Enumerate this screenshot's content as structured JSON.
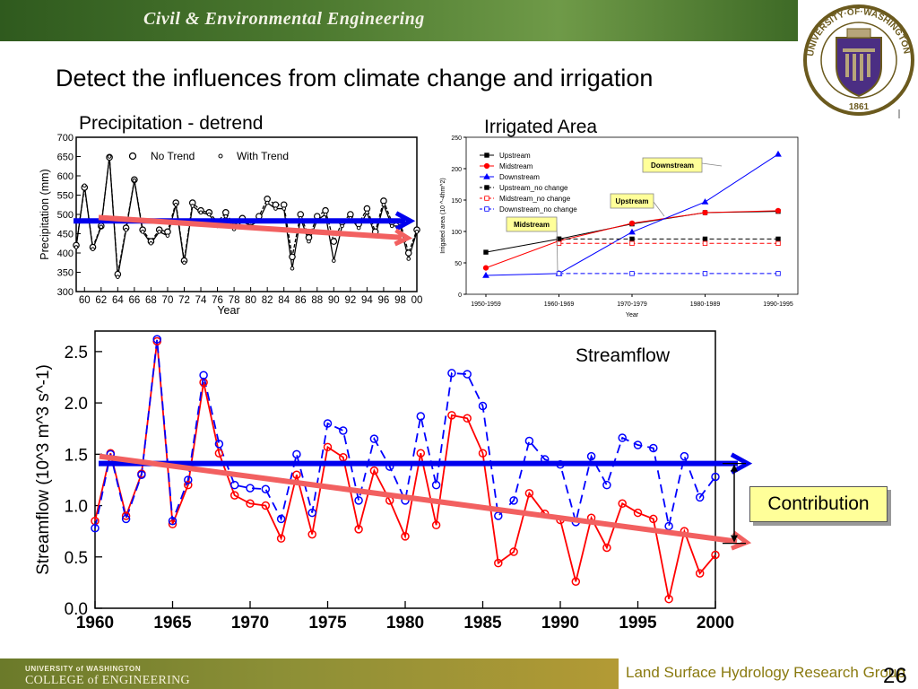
{
  "header": {
    "title": "Civil & Environmental Engineering"
  },
  "seal": {
    "text": "UNIVERSITY·OF·WASHINGTON",
    "year": "1861"
  },
  "slide": {
    "title": "Detect the influences from climate change and irrigation"
  },
  "colors": {
    "header_green": "#4d7a30",
    "footer_gold": "#b39a35",
    "red": "#ff0000",
    "blue": "#0000ff",
    "arrow_blue": "#0000ee",
    "arrow_red": "#f26060",
    "callout_yellow": "#ffff99"
  },
  "chart_data": [
    {
      "type": "line",
      "title": "Precipitation - detrend",
      "xlabel": "Year",
      "ylabel": "Precipitation (mm)",
      "ylim": [
        300,
        700
      ],
      "yticks": [
        "300",
        "350",
        "400",
        "450",
        "500",
        "550",
        "600",
        "650",
        "700"
      ],
      "xticks": [
        "60",
        "62",
        "64",
        "66",
        "68",
        "70",
        "72",
        "74",
        "76",
        "78",
        "80",
        "82",
        "84",
        "86",
        "88",
        "90",
        "92",
        "94",
        "96",
        "98",
        "00"
      ],
      "x": [
        1959,
        1960,
        1961,
        1962,
        1963,
        1964,
        1965,
        1966,
        1967,
        1968,
        1969,
        1970,
        1971,
        1972,
        1973,
        1974,
        1975,
        1976,
        1977,
        1978,
        1979,
        1980,
        1981,
        1982,
        1983,
        1984,
        1985,
        1986,
        1987,
        1988,
        1989,
        1990,
        1991,
        1992,
        1993,
        1994,
        1995,
        1996,
        1997,
        1998,
        1999,
        2000
      ],
      "legend": [
        "No Trend",
        "With Trend"
      ],
      "series": [
        {
          "name": "No Trend",
          "values": [
            420,
            570,
            415,
            470,
            648,
            345,
            465,
            590,
            460,
            430,
            460,
            455,
            530,
            380,
            530,
            510,
            505,
            480,
            505,
            470,
            490,
            480,
            495,
            540,
            525,
            525,
            390,
            500,
            440,
            495,
            510,
            430,
            480,
            500,
            475,
            515,
            455,
            535,
            480,
            480,
            400,
            460
          ]
        },
        {
          "name": "With Trend",
          "values": [
            415,
            575,
            410,
            468,
            650,
            338,
            460,
            588,
            455,
            425,
            455,
            445,
            525,
            375,
            522,
            505,
            500,
            470,
            495,
            462,
            482,
            470,
            485,
            530,
            515,
            515,
            360,
            490,
            430,
            485,
            500,
            380,
            470,
            490,
            465,
            505,
            445,
            525,
            470,
            470,
            385,
            455
          ]
        }
      ]
    },
    {
      "type": "line",
      "title": "Irrigated Area",
      "xlabel": "Year",
      "ylabel": "Irrigated area (10 ^-4hm^2)",
      "ylim": [
        0,
        250
      ],
      "yticks": [
        "0",
        "50",
        "100",
        "150",
        "200",
        "250"
      ],
      "categories": [
        "1950-1959",
        "1960-1969",
        "1970-1979",
        "1980-1989",
        "1990-1995"
      ],
      "series": [
        {
          "name": "Upstream",
          "values": [
            67,
            88,
            112,
            130,
            132
          ]
        },
        {
          "name": "Midstream",
          "values": [
            42,
            85,
            113,
            130,
            133
          ]
        },
        {
          "name": "Downstream",
          "values": [
            30,
            33,
            99,
            147,
            223
          ]
        },
        {
          "name": "Upstream_no change",
          "values": [
            null,
            88,
            88,
            88,
            88
          ]
        },
        {
          "name": "Midstream_no change",
          "values": [
            null,
            81,
            81,
            81,
            81
          ]
        },
        {
          "name": "Downstream_no change",
          "values": [
            null,
            33,
            33,
            33,
            33
          ]
        }
      ],
      "callouts": [
        "Downstream",
        "Upstream",
        "Midstream"
      ]
    },
    {
      "type": "line",
      "title": "Streamflow",
      "xlabel": "",
      "ylabel": "Streamflow (10^3 m^3 s^-1)",
      "ylim": [
        0,
        2.7
      ],
      "yticks": [
        "0.0",
        "0.5",
        "1.0",
        "1.5",
        "2.0",
        "2.5"
      ],
      "xticks": [
        "1960",
        "1965",
        "1970",
        "1975",
        "1980",
        "1985",
        "1990",
        "1995",
        "2000"
      ],
      "x": [
        1960,
        1961,
        1962,
        1963,
        1964,
        1965,
        1966,
        1967,
        1968,
        1969,
        1970,
        1971,
        1972,
        1973,
        1974,
        1975,
        1976,
        1977,
        1978,
        1979,
        1980,
        1981,
        1982,
        1983,
        1984,
        1985,
        1986,
        1987,
        1988,
        1989,
        1990,
        1991,
        1992,
        1993,
        1994,
        1995,
        1996,
        1997,
        1998,
        1999,
        2000
      ],
      "series": [
        {
          "name": "",
          "color": "blue",
          "values": [
            0.78,
            1.5,
            0.87,
            1.3,
            2.62,
            0.85,
            1.25,
            2.27,
            1.6,
            1.2,
            1.17,
            1.16,
            0.87,
            1.5,
            0.93,
            1.8,
            1.73,
            1.05,
            1.65,
            1.38,
            1.05,
            1.87,
            1.2,
            2.29,
            2.28,
            1.97,
            0.9,
            1.05,
            1.63,
            1.45,
            1.4,
            0.84,
            1.48,
            1.2,
            1.66,
            1.59,
            1.56,
            0.8,
            1.48,
            1.08,
            1.28
          ]
        },
        {
          "name": "",
          "color": "red",
          "values": [
            0.85,
            1.51,
            0.9,
            1.31,
            2.6,
            0.82,
            1.2,
            2.2,
            1.51,
            1.1,
            1.02,
            1.0,
            0.68,
            1.3,
            0.72,
            1.57,
            1.47,
            0.77,
            1.34,
            1.05,
            0.7,
            1.51,
            0.81,
            1.88,
            1.85,
            1.51,
            0.44,
            0.55,
            1.12,
            0.92,
            0.86,
            0.26,
            0.88,
            0.59,
            1.02,
            0.93,
            0.87,
            0.09,
            0.75,
            0.34,
            0.52
          ]
        }
      ],
      "annotation": "Contribution"
    }
  ],
  "footer": {
    "uw_line": "UNIVERSITY of WASHINGTON",
    "coe_line": "COLLEGE of ENGINEERING",
    "lab": "Land Surface Hydrology Research Group",
    "page": "26"
  }
}
